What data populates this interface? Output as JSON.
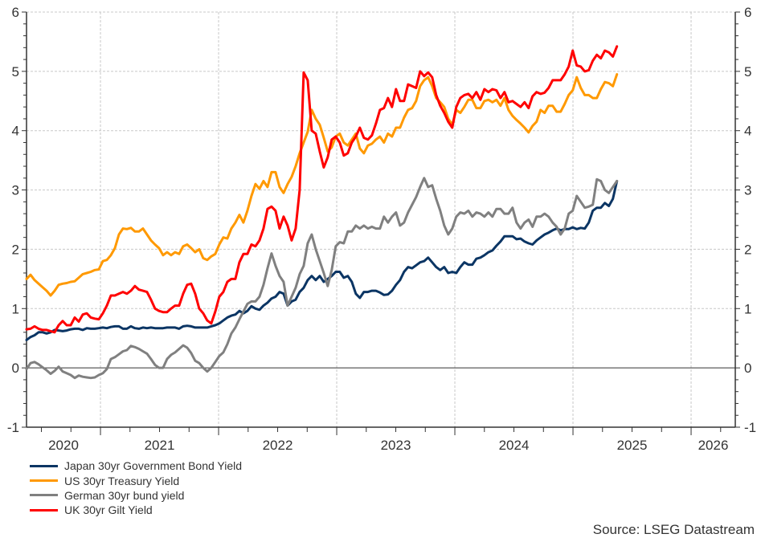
{
  "chart_data": {
    "type": "line",
    "title": "",
    "xlabel": "",
    "ylabel": "",
    "x_unit": "decimal year",
    "xlim": [
      2020.374,
      2026.374
    ],
    "ylim": [
      -1,
      6
    ],
    "y_ticks": [
      -1,
      0,
      1,
      2,
      3,
      4,
      5,
      6
    ],
    "y_tick_labels": [
      "-1",
      "0",
      "1",
      "2",
      "3",
      "4",
      "5",
      "6"
    ],
    "y_axis_sides": "left and right",
    "x_tick_labels": [
      "2020",
      "2021",
      "2022",
      "2023",
      "2024",
      "2025",
      "2026"
    ],
    "x_year_boundaries": [
      2021,
      2022,
      2023,
      2024,
      2025,
      2026
    ],
    "grid": true,
    "legend_position": "bottom-left",
    "x_start": 2020.374,
    "x_step": 0.034,
    "series": [
      {
        "name": "Japan 30yr Government Bond Yield",
        "color": "#0b3564",
        "values": [
          0.47,
          0.52,
          0.55,
          0.6,
          0.6,
          0.58,
          0.6,
          0.64,
          0.63,
          0.62,
          0.63,
          0.65,
          0.66,
          0.66,
          0.64,
          0.67,
          0.66,
          0.66,
          0.67,
          0.68,
          0.67,
          0.69,
          0.7,
          0.7,
          0.66,
          0.66,
          0.7,
          0.67,
          0.66,
          0.68,
          0.67,
          0.68,
          0.67,
          0.67,
          0.67,
          0.68,
          0.68,
          0.68,
          0.66,
          0.7,
          0.71,
          0.7,
          0.68,
          0.68,
          0.68,
          0.68,
          0.7,
          0.72,
          0.75,
          0.8,
          0.85,
          0.88,
          0.9,
          0.96,
          0.92,
          0.96,
          1.04,
          1.0,
          0.98,
          1.05,
          1.1,
          1.17,
          1.2,
          1.28,
          1.25,
          1.05,
          1.12,
          1.15,
          1.28,
          1.35,
          1.48,
          1.55,
          1.48,
          1.55,
          1.45,
          1.5,
          1.55,
          1.62,
          1.62,
          1.52,
          1.55,
          1.45,
          1.25,
          1.18,
          1.28,
          1.28,
          1.3,
          1.3,
          1.27,
          1.23,
          1.24,
          1.3,
          1.4,
          1.48,
          1.62,
          1.7,
          1.68,
          1.73,
          1.78,
          1.8,
          1.86,
          1.78,
          1.7,
          1.65,
          1.7,
          1.6,
          1.62,
          1.6,
          1.7,
          1.78,
          1.74,
          1.74,
          1.84,
          1.86,
          1.9,
          1.95,
          1.98,
          2.06,
          2.13,
          2.22,
          2.22,
          2.22,
          2.17,
          2.18,
          2.13,
          2.1,
          2.08,
          2.15,
          2.2,
          2.25,
          2.28,
          2.32,
          2.35,
          2.32,
          2.34,
          2.34,
          2.37,
          2.34,
          2.36,
          2.35,
          2.45,
          2.65,
          2.7,
          2.7,
          2.78,
          2.73,
          2.85,
          3.15
        ]
      },
      {
        "name": "US 30yr Treasury Yield",
        "color": "#ff9900",
        "values": [
          1.5,
          1.57,
          1.48,
          1.42,
          1.36,
          1.3,
          1.22,
          1.3,
          1.4,
          1.42,
          1.43,
          1.45,
          1.46,
          1.52,
          1.58,
          1.6,
          1.62,
          1.65,
          1.66,
          1.8,
          1.82,
          1.9,
          2.02,
          2.25,
          2.35,
          2.34,
          2.36,
          2.3,
          2.3,
          2.35,
          2.25,
          2.15,
          2.08,
          2.02,
          1.9,
          1.95,
          1.9,
          1.95,
          1.92,
          2.05,
          2.08,
          2.02,
          1.95,
          2.0,
          1.85,
          1.82,
          1.88,
          1.92,
          2.08,
          2.2,
          2.18,
          2.35,
          2.45,
          2.58,
          2.45,
          2.65,
          2.9,
          3.1,
          3.02,
          3.15,
          3.05,
          3.3,
          3.3,
          3.05,
          2.95,
          3.1,
          3.22,
          3.4,
          3.62,
          3.8,
          3.98,
          4.35,
          4.2,
          4.1,
          3.88,
          3.65,
          3.72,
          3.9,
          3.95,
          3.8,
          3.75,
          3.85,
          3.95,
          3.7,
          3.62,
          3.75,
          3.78,
          3.85,
          3.9,
          3.8,
          3.95,
          3.9,
          4.05,
          4.05,
          4.22,
          4.35,
          4.38,
          4.5,
          4.75,
          4.85,
          4.9,
          4.75,
          4.55,
          4.48,
          4.4,
          4.2,
          4.1,
          4.35,
          4.3,
          4.4,
          4.52,
          4.52,
          4.38,
          4.38,
          4.5,
          4.52,
          4.48,
          4.52,
          4.42,
          4.55,
          4.35,
          4.25,
          4.18,
          4.12,
          4.05,
          3.97,
          4.08,
          4.15,
          4.35,
          4.3,
          4.42,
          4.42,
          4.32,
          4.32,
          4.45,
          4.6,
          4.68,
          4.9,
          4.72,
          4.6,
          4.6,
          4.55,
          4.55,
          4.7,
          4.82,
          4.8,
          4.75,
          4.95
        ]
      },
      {
        "name": "German 30yr bund yield",
        "color": "#808080",
        "values": [
          -0.02,
          0.08,
          0.1,
          0.06,
          0.01,
          -0.04,
          -0.1,
          -0.05,
          0.02,
          -0.06,
          -0.09,
          -0.12,
          -0.17,
          -0.13,
          -0.15,
          -0.16,
          -0.17,
          -0.16,
          -0.12,
          -0.09,
          -0.02,
          0.15,
          0.18,
          0.23,
          0.28,
          0.3,
          0.37,
          0.35,
          0.32,
          0.28,
          0.24,
          0.15,
          0.05,
          0.0,
          0.0,
          0.15,
          0.22,
          0.26,
          0.32,
          0.38,
          0.34,
          0.25,
          0.12,
          0.08,
          0.0,
          -0.06,
          0.0,
          0.1,
          0.2,
          0.26,
          0.4,
          0.58,
          0.68,
          0.82,
          0.95,
          1.08,
          1.12,
          1.12,
          1.2,
          1.4,
          1.68,
          1.93,
          1.72,
          1.55,
          1.45,
          1.05,
          1.2,
          1.35,
          1.58,
          1.72,
          2.1,
          2.25,
          2.0,
          1.8,
          1.6,
          1.38,
          1.65,
          2.05,
          2.12,
          2.1,
          2.3,
          2.3,
          2.4,
          2.35,
          2.4,
          2.35,
          2.38,
          2.35,
          2.35,
          2.55,
          2.45,
          2.55,
          2.62,
          2.4,
          2.45,
          2.62,
          2.75,
          2.88,
          3.05,
          3.2,
          3.05,
          3.08,
          2.85,
          2.65,
          2.4,
          2.25,
          2.35,
          2.55,
          2.62,
          2.6,
          2.65,
          2.55,
          2.62,
          2.6,
          2.55,
          2.62,
          2.55,
          2.68,
          2.68,
          2.6,
          2.6,
          2.7,
          2.45,
          2.35,
          2.45,
          2.5,
          2.38,
          2.55,
          2.55,
          2.6,
          2.55,
          2.45,
          2.38,
          2.25,
          2.35,
          2.6,
          2.65,
          2.9,
          2.8,
          2.7,
          2.72,
          2.75,
          3.18,
          3.15,
          3.0,
          2.95,
          3.05,
          3.15
        ]
      },
      {
        "name": "UK 30yr Gilt Yield",
        "color": "#ff0000",
        "values": [
          0.65,
          0.66,
          0.7,
          0.66,
          0.64,
          0.64,
          0.62,
          0.6,
          0.72,
          0.79,
          0.72,
          0.72,
          0.85,
          0.78,
          0.9,
          0.92,
          0.85,
          0.83,
          0.82,
          0.92,
          1.05,
          1.22,
          1.22,
          1.25,
          1.28,
          1.25,
          1.3,
          1.38,
          1.32,
          1.3,
          1.28,
          1.15,
          1.0,
          0.96,
          0.94,
          0.94,
          1.0,
          1.05,
          1.05,
          1.25,
          1.4,
          1.42,
          1.25,
          1.0,
          0.92,
          0.8,
          0.75,
          0.95,
          1.2,
          1.28,
          1.45,
          1.5,
          1.5,
          1.78,
          1.92,
          1.92,
          2.08,
          2.05,
          2.15,
          2.35,
          2.68,
          2.72,
          2.65,
          2.35,
          2.55,
          2.4,
          2.15,
          2.35,
          3.0,
          4.98,
          4.85,
          4.0,
          3.95,
          3.65,
          3.38,
          3.55,
          3.85,
          3.9,
          3.8,
          3.58,
          3.62,
          3.8,
          3.9,
          4.05,
          3.88,
          3.85,
          3.92,
          4.12,
          4.35,
          4.38,
          4.55,
          4.4,
          4.7,
          4.5,
          4.5,
          4.78,
          4.75,
          4.72,
          5.0,
          4.92,
          4.98,
          4.9,
          4.6,
          4.42,
          4.3,
          4.15,
          4.05,
          4.4,
          4.55,
          4.6,
          4.62,
          4.55,
          4.65,
          4.52,
          4.7,
          4.65,
          4.7,
          4.68,
          4.55,
          4.65,
          4.48,
          4.5,
          4.45,
          4.4,
          4.48,
          4.38,
          4.58,
          4.65,
          4.62,
          4.64,
          4.72,
          4.85,
          4.85,
          4.85,
          4.95,
          5.08,
          5.35,
          5.1,
          5.08,
          5.0,
          5.02,
          5.18,
          5.28,
          5.22,
          5.35,
          5.32,
          5.25,
          5.42
        ]
      }
    ],
    "source": "Source: LSEG Datastream"
  },
  "legend": [
    {
      "label": "Japan 30yr Government Bond Yield",
      "color": "#0b3564"
    },
    {
      "label": "US 30yr Treasury Yield",
      "color": "#ff9900"
    },
    {
      "label": "German 30yr bund yield",
      "color": "#808080"
    },
    {
      "label": "UK 30yr Gilt Yield",
      "color": "#ff0000"
    }
  ],
  "footer": {
    "source": "Source: LSEG Datastream"
  }
}
